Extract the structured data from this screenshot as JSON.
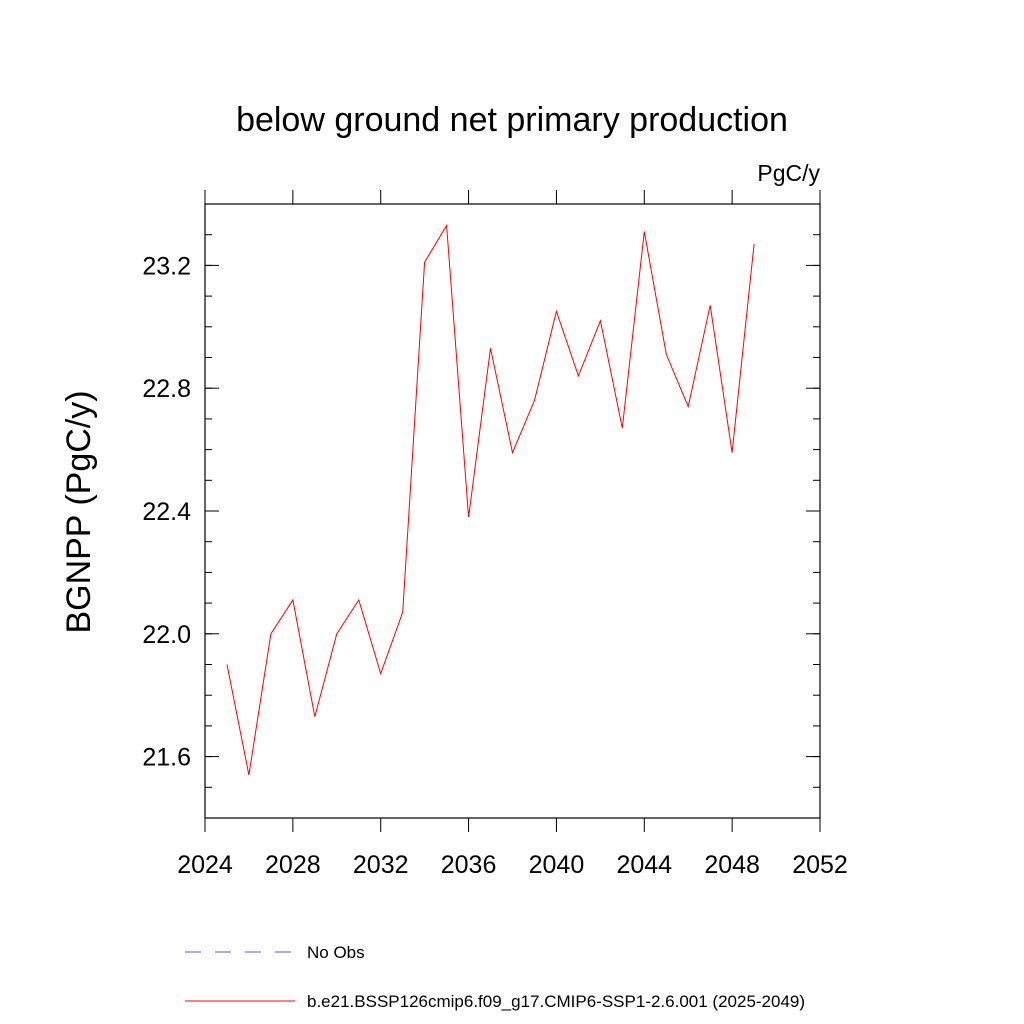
{
  "chart_data": {
    "type": "line",
    "title": "below ground net primary production",
    "units": "PgC/y",
    "ylabel": "BGNPP  (PgC/y)",
    "xlabel": "",
    "xlim": [
      2024,
      2052
    ],
    "ylim": [
      21.4,
      23.4
    ],
    "xticks": [
      "2024",
      "2028",
      "2032",
      "2036",
      "2040",
      "2044",
      "2048",
      "2052"
    ],
    "yticks": [
      "21.6",
      "22.0",
      "22.4",
      "22.8",
      "23.2"
    ],
    "grid": false,
    "legend_position": "bottom",
    "series": [
      {
        "name": "b.e21.BSSP126cmip6.f09_g17.CMIP6-SSP1-2.6.001 (2025-2049)",
        "color": "#ff0000",
        "x": [
          2025,
          2026,
          2027,
          2028,
          2029,
          2030,
          2031,
          2032,
          2033,
          2034,
          2035,
          2036,
          2037,
          2038,
          2039,
          2040,
          2041,
          2042,
          2043,
          2044,
          2045,
          2046,
          2047,
          2048,
          2049
        ],
        "y": [
          21.9,
          21.54,
          22.0,
          22.11,
          21.73,
          22.0,
          22.11,
          21.87,
          22.07,
          23.21,
          23.33,
          22.38,
          22.93,
          22.59,
          22.76,
          23.05,
          22.84,
          23.02,
          22.67,
          23.31,
          22.91,
          22.74,
          23.07,
          22.59,
          23.27
        ]
      }
    ],
    "legend": [
      {
        "label": "No Obs",
        "color": "#6a5acd",
        "style": "dashed"
      },
      {
        "label": "b.e21.BSSP126cmip6.f09_g17.CMIP6-SSP1-2.6.001 (2025-2049)",
        "color": "#ff0000",
        "style": "solid"
      }
    ]
  }
}
